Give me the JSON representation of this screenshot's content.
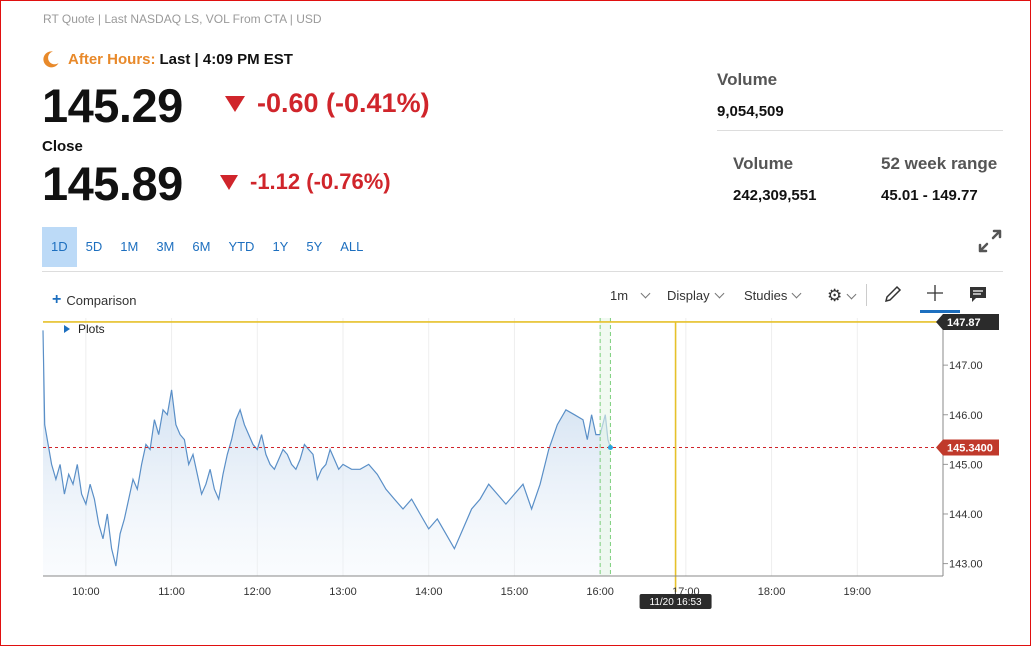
{
  "header": {
    "subhead": "RT Quote | Last NASDAQ LS, VOL From CTA | USD",
    "after_hours_label": "After Hours:",
    "after_hours_rest": "Last | 4:09 PM EST",
    "after_price": "145.29",
    "after_change": "-0.60 (-0.41%)",
    "close_label": "Close",
    "close_price": "145.89",
    "close_change": "-1.12 (-0.76%)"
  },
  "stats": {
    "ah_volume_label": "Volume",
    "ah_volume_value": "9,054,509",
    "volume_label": "Volume",
    "volume_value": "242,309,551",
    "range_label": "52 week range",
    "range_value": "45.01 - 149.77"
  },
  "ranges": [
    "1D",
    "5D",
    "1M",
    "3M",
    "6M",
    "YTD",
    "1Y",
    "5Y",
    "ALL"
  ],
  "active_range": "1D",
  "toolbar": {
    "comparison": "Comparison",
    "interval": "1m",
    "display": "Display",
    "studies": "Studies",
    "plots": "Plots"
  },
  "colors": {
    "down": "#d0252b",
    "accent": "#1d6fbf",
    "after_hours": "#e8892a",
    "crosshair": "#e6c12a",
    "area_stroke": "#5a8fc7"
  },
  "chart_data": {
    "type": "area",
    "ylim": [
      142.75,
      147.95
    ],
    "y_ticks": [
      143.0,
      144.0,
      145.0,
      146.0,
      147.0
    ],
    "x_ticks": [
      "10:00",
      "11:00",
      "12:00",
      "13:00",
      "14:00",
      "15:00",
      "16:00",
      "17:00",
      "18:00",
      "19:00"
    ],
    "x_start_hour": 9.5,
    "x_end_hour": 20.0,
    "series": [
      {
        "x": [
          9.5,
          9.52,
          9.55,
          9.6,
          9.65,
          9.7,
          9.75,
          9.8,
          9.85,
          9.9,
          9.95,
          10.0,
          10.05,
          10.1,
          10.15,
          10.2,
          10.25,
          10.3,
          10.35,
          10.4,
          10.45,
          10.5,
          10.55,
          10.6,
          10.65,
          10.7,
          10.75,
          10.8,
          10.85,
          10.9,
          10.95,
          11.0,
          11.05,
          11.1,
          11.15,
          11.2,
          11.25,
          11.3,
          11.35,
          11.4,
          11.45,
          11.5,
          11.55,
          11.6,
          11.65,
          11.7,
          11.75,
          11.8,
          11.85,
          11.9,
          11.95,
          12.0,
          12.05,
          12.1,
          12.15,
          12.2,
          12.25,
          12.3,
          12.35,
          12.4,
          12.45,
          12.5,
          12.55,
          12.6,
          12.65,
          12.7,
          12.75,
          12.8,
          12.85,
          12.9,
          12.95,
          13.0,
          13.1,
          13.2,
          13.3,
          13.4,
          13.5,
          13.6,
          13.7,
          13.8,
          13.9,
          14.0,
          14.1,
          14.2,
          14.3,
          14.4,
          14.5,
          14.6,
          14.7,
          14.8,
          14.9,
          15.0,
          15.1,
          15.2,
          15.3,
          15.4,
          15.5,
          15.6,
          15.7,
          15.8,
          15.85,
          15.9,
          15.95,
          16.0,
          16.03,
          16.06,
          16.09,
          16.12
        ],
        "values": [
          147.7,
          145.8,
          145.5,
          145.0,
          144.7,
          145.0,
          144.4,
          144.8,
          144.6,
          145.0,
          144.4,
          144.2,
          144.6,
          144.3,
          143.8,
          143.5,
          144.0,
          143.3,
          142.95,
          143.6,
          143.9,
          144.3,
          144.7,
          144.5,
          145.0,
          145.4,
          145.3,
          145.9,
          145.6,
          146.1,
          146.0,
          146.5,
          145.8,
          145.6,
          145.5,
          145.0,
          145.2,
          144.8,
          144.4,
          144.6,
          144.9,
          144.5,
          144.3,
          144.8,
          145.2,
          145.5,
          145.9,
          146.1,
          145.8,
          145.6,
          145.4,
          145.3,
          145.6,
          145.2,
          145.0,
          144.9,
          145.1,
          145.3,
          145.2,
          145.0,
          144.9,
          145.1,
          145.4,
          145.3,
          145.2,
          144.7,
          144.9,
          145.0,
          145.3,
          145.1,
          144.9,
          145.0,
          144.9,
          144.9,
          145.0,
          144.8,
          144.5,
          144.3,
          144.1,
          144.3,
          144.0,
          143.7,
          143.9,
          143.6,
          143.3,
          143.7,
          144.1,
          144.3,
          144.6,
          144.4,
          144.2,
          144.4,
          144.6,
          144.1,
          144.6,
          145.3,
          145.8,
          146.1,
          146.0,
          145.9,
          145.5,
          146.0,
          145.6,
          145.6,
          145.8,
          146.0,
          145.5,
          145.34
        ]
      }
    ],
    "last_price_label": "145.3400",
    "last_price": 145.34,
    "crosshair_price_label": "147.87",
    "crosshair_price": 147.87,
    "crosshair_time_label": "11/20 16:53",
    "crosshair_hour": 16.88,
    "close_hour": 16.0
  }
}
